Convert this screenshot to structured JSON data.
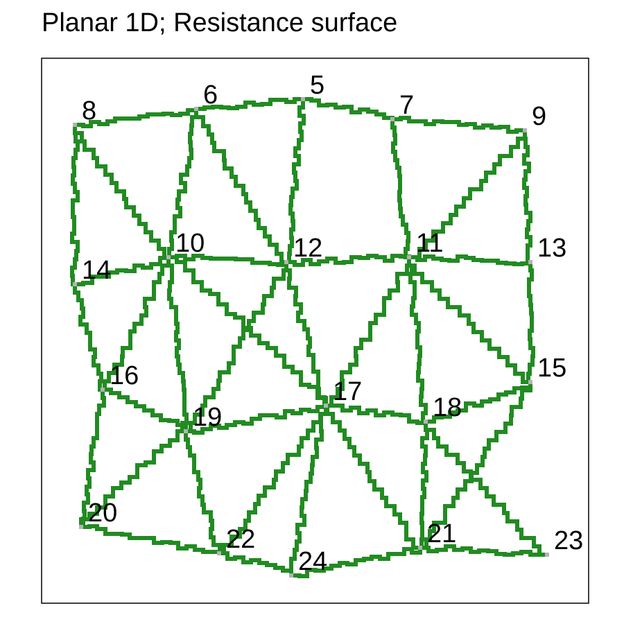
{
  "title": "Planar 1D; Resistance surface",
  "colors": {
    "edge": "#228b22",
    "node_marker": "#b3b3b3",
    "frame": "#000000"
  },
  "nodes": [
    {
      "id": "5"
    },
    {
      "id": "6"
    },
    {
      "id": "7"
    },
    {
      "id": "8"
    },
    {
      "id": "9"
    },
    {
      "id": "10"
    },
    {
      "id": "11"
    },
    {
      "id": "12"
    },
    {
      "id": "13"
    },
    {
      "id": "14"
    },
    {
      "id": "15"
    },
    {
      "id": "16"
    },
    {
      "id": "17"
    },
    {
      "id": "18"
    },
    {
      "id": "19"
    },
    {
      "id": "20"
    },
    {
      "id": "21"
    },
    {
      "id": "22"
    },
    {
      "id": "23"
    },
    {
      "id": "24"
    }
  ],
  "edges": [
    [
      "8",
      "6"
    ],
    [
      "6",
      "5"
    ],
    [
      "5",
      "7"
    ],
    [
      "7",
      "9"
    ],
    [
      "8",
      "14"
    ],
    [
      "8",
      "10"
    ],
    [
      "6",
      "10"
    ],
    [
      "6",
      "12"
    ],
    [
      "5",
      "12"
    ],
    [
      "7",
      "11"
    ],
    [
      "9",
      "11"
    ],
    [
      "9",
      "13"
    ],
    [
      "10",
      "12"
    ],
    [
      "12",
      "11"
    ],
    [
      "11",
      "13"
    ],
    [
      "14",
      "10"
    ],
    [
      "14",
      "16"
    ],
    [
      "10",
      "16"
    ],
    [
      "10",
      "19"
    ],
    [
      "10",
      "17"
    ],
    [
      "12",
      "17"
    ],
    [
      "12",
      "19"
    ],
    [
      "11",
      "17"
    ],
    [
      "11",
      "18"
    ],
    [
      "11",
      "15"
    ],
    [
      "13",
      "15"
    ],
    [
      "16",
      "19"
    ],
    [
      "16",
      "20"
    ],
    [
      "19",
      "17"
    ],
    [
      "17",
      "18"
    ],
    [
      "18",
      "15"
    ],
    [
      "15",
      "21"
    ],
    [
      "19",
      "20"
    ],
    [
      "19",
      "22"
    ],
    [
      "17",
      "22"
    ],
    [
      "17",
      "21"
    ],
    [
      "18",
      "21"
    ],
    [
      "18",
      "23"
    ],
    [
      "20",
      "22"
    ],
    [
      "22",
      "24"
    ],
    [
      "24",
      "21"
    ],
    [
      "21",
      "23"
    ],
    [
      "24",
      "17"
    ]
  ]
}
